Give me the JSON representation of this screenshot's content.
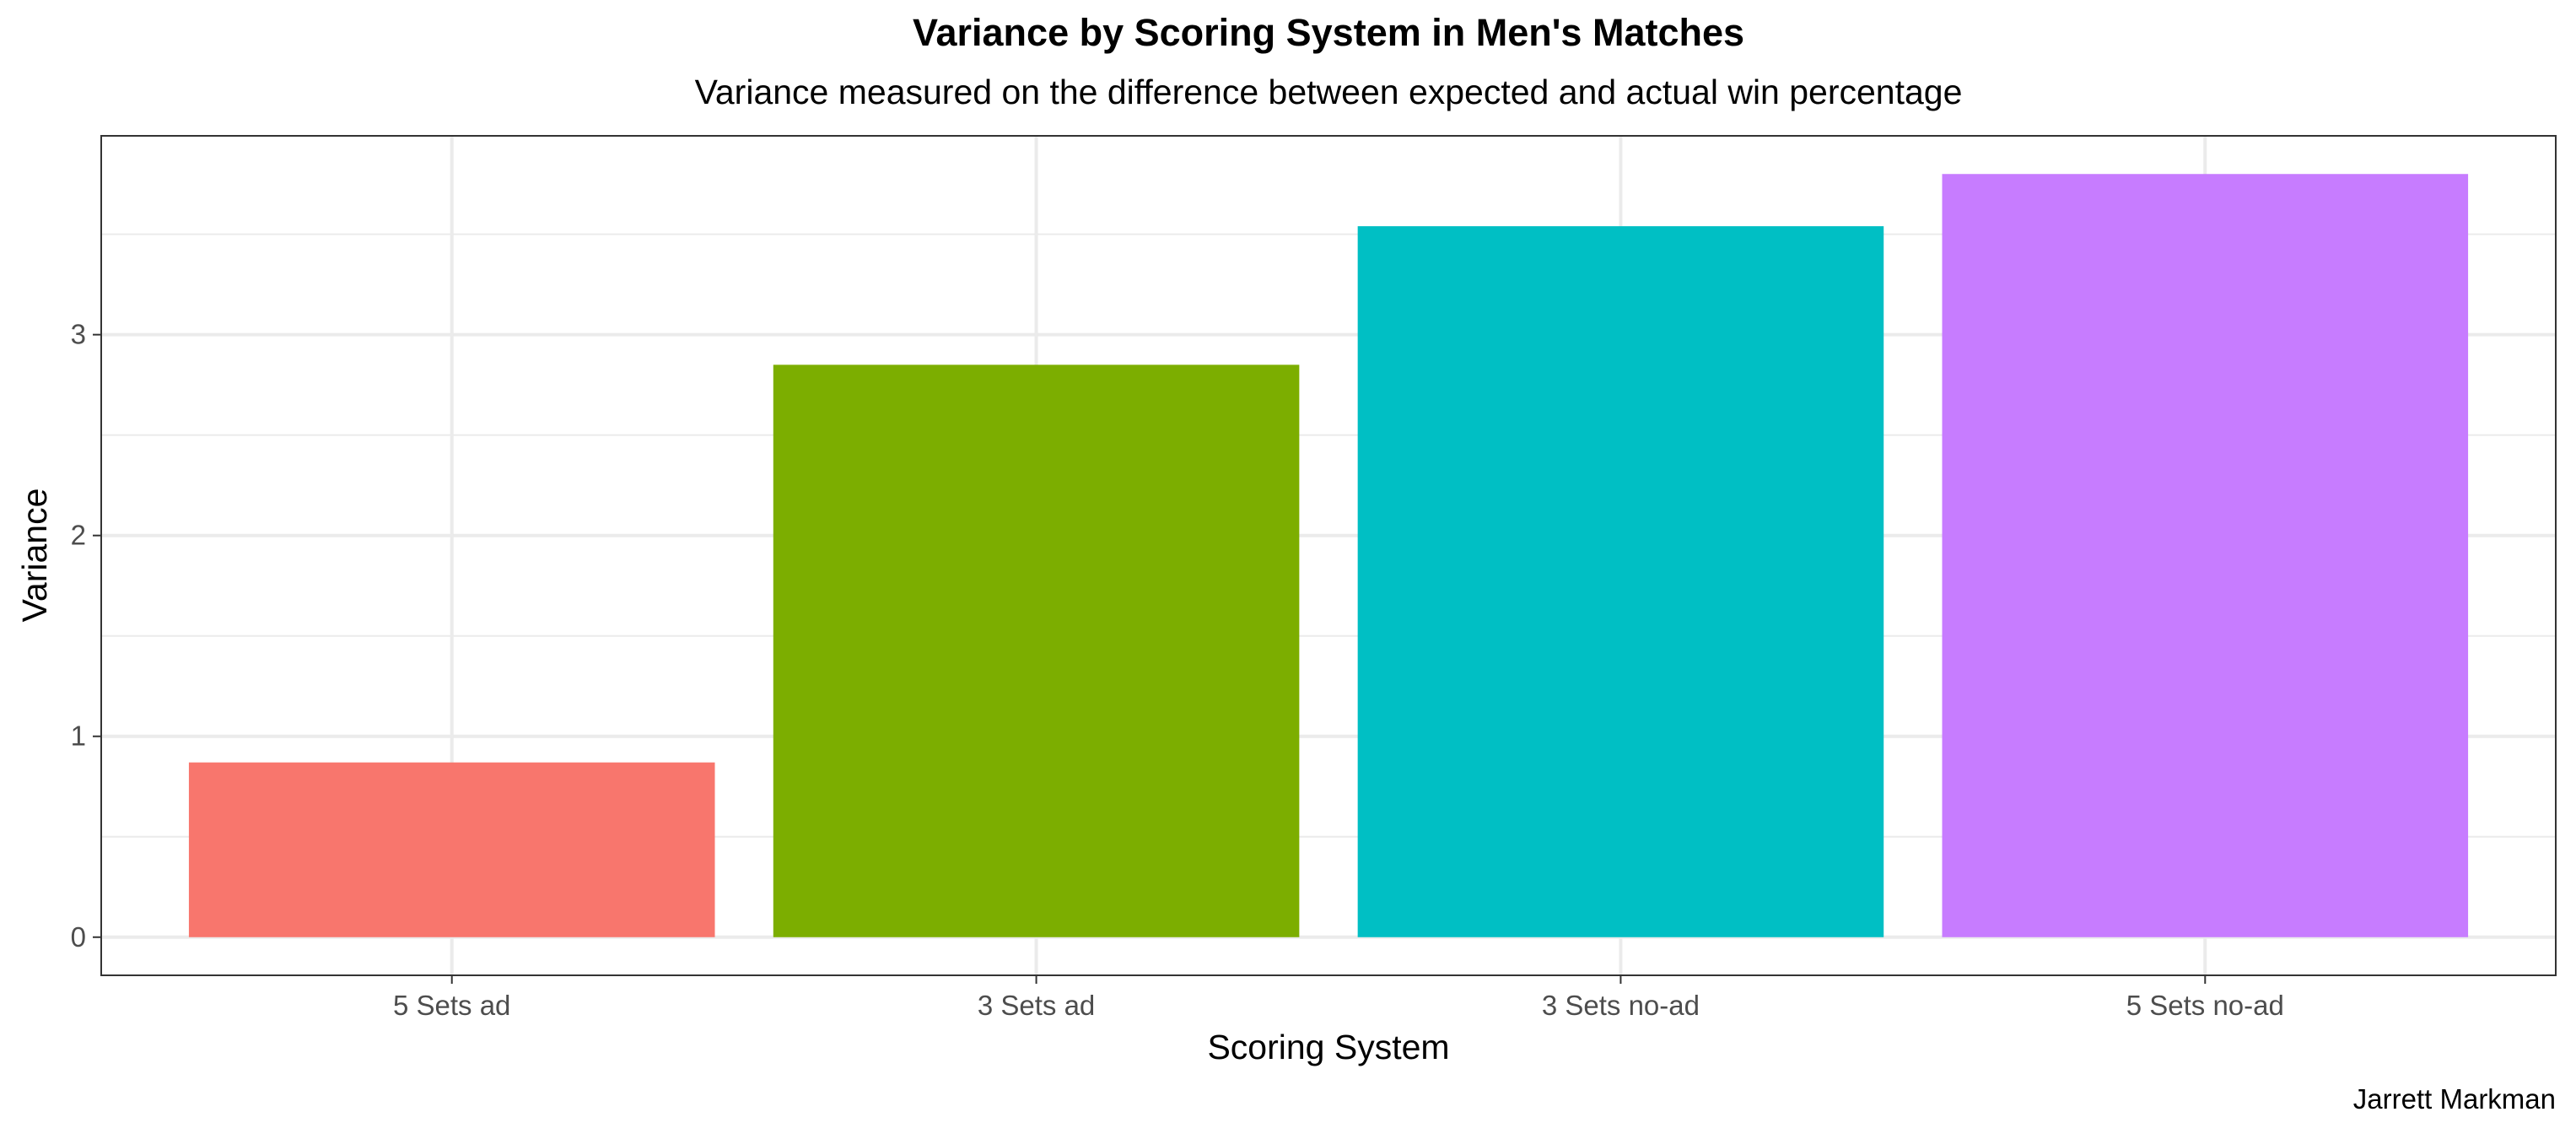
{
  "chart_data": {
    "type": "bar",
    "title": "Variance by Scoring System in Men's Matches",
    "subtitle": "Variance measured on the difference between expected and actual win percentage",
    "xlabel": "Scoring System",
    "ylabel": "Variance",
    "caption": "Jarrett Markman",
    "categories": [
      "5 Sets ad",
      "3 Sets ad",
      "3 Sets no-ad",
      "5 Sets no-ad"
    ],
    "values": [
      0.87,
      2.85,
      3.54,
      3.8
    ],
    "colors": [
      "#F8766D",
      "#7CAE00",
      "#00BFC4",
      "#C77CFF"
    ],
    "ylim": [
      -0.19,
      3.99
    ],
    "yticks": [
      0,
      1,
      2,
      3
    ],
    "ytick_labels": [
      "0",
      "1",
      "2",
      "3"
    ],
    "grid": true,
    "legend": "none"
  }
}
